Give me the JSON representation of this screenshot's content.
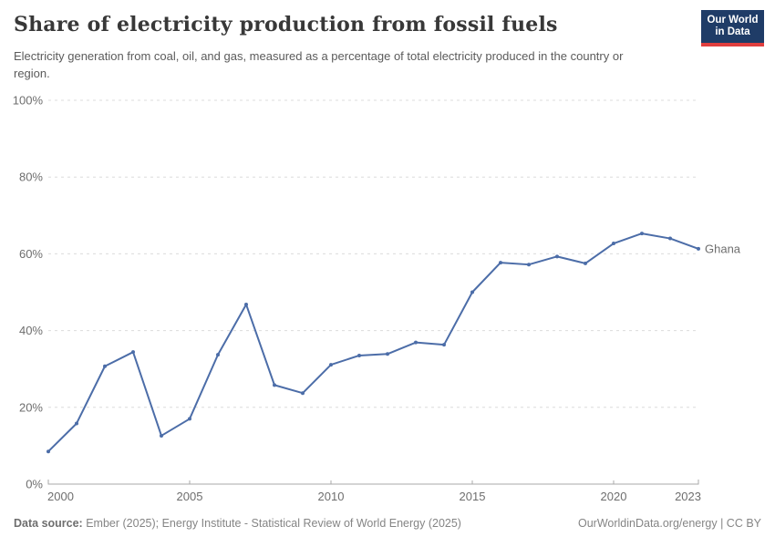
{
  "header": {
    "title": "Share of electricity production from fossil fuels",
    "subtitle": "Electricity generation from coal, oil, and gas, measured as a percentage of total electricity produced in the country or region.",
    "logo": {
      "line1": "Our World",
      "line2": "in Data"
    }
  },
  "chart_data": {
    "type": "line",
    "title": "Share of electricity production from fossil fuels",
    "subtitle": "Electricity generation from coal, oil, and gas, measured as a percentage of total electricity produced in the country or region.",
    "x": [
      2000,
      2001,
      2002,
      2003,
      2004,
      2005,
      2006,
      2007,
      2008,
      2009,
      2010,
      2011,
      2012,
      2013,
      2014,
      2015,
      2016,
      2017,
      2018,
      2019,
      2020,
      2021,
      2022,
      2023
    ],
    "series": [
      {
        "name": "Ghana",
        "color": "#4c6da8",
        "values": [
          8.5,
          15.8,
          30.7,
          34.4,
          12.6,
          17.0,
          33.7,
          46.8,
          25.8,
          23.7,
          31.1,
          33.5,
          33.9,
          36.9,
          36.3,
          50.0,
          57.7,
          57.2,
          59.3,
          57.5,
          62.7,
          65.3,
          64.0,
          61.3
        ]
      }
    ],
    "xlim": [
      2000,
      2023
    ],
    "ylim": [
      0,
      100
    ],
    "yticks": [
      0,
      20,
      40,
      60,
      80,
      100
    ],
    "ytick_suffix": "%",
    "xticks": [
      2000,
      2005,
      2010,
      2015,
      2020,
      2023
    ],
    "grid": "horizontal-dashed",
    "legend_position": "end-of-line-label",
    "xlabel": "",
    "ylabel": ""
  },
  "colors": {
    "line": "#4c6da8",
    "grid": "#dcdcdc",
    "axis": "#a9a9a9",
    "tick_text": "#6e6e6e",
    "title_text": "#383838",
    "subtitle_text": "#5b5b5b",
    "footer_text": "#858585",
    "logo_background": "#1f3c67",
    "logo_stripe": "#e03e3e"
  },
  "footer": {
    "source_label": "Data source:",
    "source_text": " Ember (2025); Energy Institute - Statistical Review of World Energy (2025)",
    "right_text": "OurWorldinData.org/energy | CC BY"
  }
}
